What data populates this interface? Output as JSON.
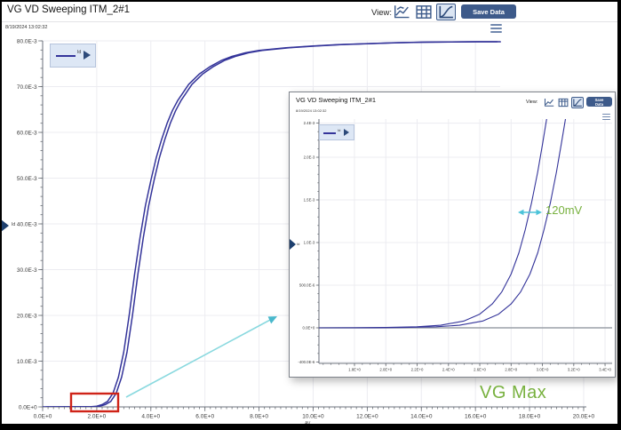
{
  "window": {
    "title": "VG VD Sweeping ITM_2#1",
    "timestamp": "8/19/2024 13:02:32"
  },
  "toolbar": {
    "view_label": "View:",
    "save_label": "Save Data",
    "icons": [
      "overlay-chart-view",
      "table-view",
      "graph-view-selected",
      "menu"
    ]
  },
  "legend": {
    "label": "Id"
  },
  "axes_labels": {
    "y": "Id",
    "x": "AV"
  },
  "annotations": {
    "delta_label": "120mV",
    "vg_max_label": "VG Max"
  },
  "colors": {
    "curve": "#34349a",
    "accent_blue": "#3d5a8a",
    "annotation_green": "#78b13f",
    "annotation_cyan": "#4cc3d9",
    "highlight_red": "#cf2318"
  },
  "chart_data": [
    {
      "id": "main",
      "type": "line",
      "title": "VG VD Sweeping ITM_2#1",
      "xlabel": "AV",
      "ylabel": "Id",
      "xlim": [
        0,
        20.1
      ],
      "ylim": [
        0,
        0.08
      ],
      "grid": true,
      "x_ticks": [
        {
          "v": 0,
          "label": "0.0E+0"
        },
        {
          "v": 2,
          "label": "2.0E+0"
        },
        {
          "v": 4,
          "label": "4.0E+0"
        },
        {
          "v": 6,
          "label": "6.0E+0"
        },
        {
          "v": 8,
          "label": "8.0E+0"
        },
        {
          "v": 10,
          "label": "10.0E+0"
        },
        {
          "v": 12,
          "label": "12.0E+0"
        },
        {
          "v": 14,
          "label": "14.0E+0"
        },
        {
          "v": 16,
          "label": "16.0E+0"
        },
        {
          "v": 18,
          "label": "18.0E+0"
        },
        {
          "v": 20,
          "label": "20.0E+0"
        }
      ],
      "y_ticks": [
        {
          "v": 0.08,
          "label": "80.0E-3"
        },
        {
          "v": 0.07,
          "label": "70.0E-3"
        },
        {
          "v": 0.06,
          "label": "60.0E-3"
        },
        {
          "v": 0.05,
          "label": "50.0E-3"
        },
        {
          "v": 0.04,
          "label": "40.0E-3"
        },
        {
          "v": 0.03,
          "label": "30.0E-3"
        },
        {
          "v": 0.02,
          "label": "20.0E-3"
        },
        {
          "v": 0.01,
          "label": "10.0E-3"
        },
        {
          "v": 0,
          "label": "0.0E+0"
        }
      ],
      "series": [
        {
          "name": "Id",
          "vg_offset_v": 0
        },
        {
          "name": "Id",
          "vg_offset_v": 0.12
        }
      ],
      "points": [
        [
          0,
          0
        ],
        [
          1.2,
          1e-05
        ],
        [
          1.8,
          6e-05
        ],
        [
          2.0,
          0.00015
        ],
        [
          2.2,
          0.0005
        ],
        [
          2.4,
          0.0012
        ],
        [
          2.6,
          0.003
        ],
        [
          2.8,
          0.0065
        ],
        [
          3.0,
          0.012
        ],
        [
          3.2,
          0.02
        ],
        [
          3.4,
          0.029
        ],
        [
          3.6,
          0.037
        ],
        [
          3.8,
          0.044
        ],
        [
          4.0,
          0.0495
        ],
        [
          4.2,
          0.0545
        ],
        [
          4.4,
          0.0585
        ],
        [
          4.6,
          0.062
        ],
        [
          4.8,
          0.0648
        ],
        [
          5.0,
          0.067
        ],
        [
          5.4,
          0.0705
        ],
        [
          5.8,
          0.0728
        ],
        [
          6.2,
          0.0744
        ],
        [
          6.6,
          0.0757
        ],
        [
          7.0,
          0.0766
        ],
        [
          7.5,
          0.0774
        ],
        [
          8.0,
          0.0779
        ],
        [
          9.0,
          0.0785
        ],
        [
          10.0,
          0.0789
        ],
        [
          11.0,
          0.0792
        ],
        [
          12.0,
          0.0794
        ],
        [
          13.0,
          0.0796
        ],
        [
          14.0,
          0.0797
        ],
        [
          15.0,
          0.07975
        ],
        [
          16.0,
          0.0798
        ],
        [
          16.8,
          0.0798
        ]
      ]
    },
    {
      "id": "inset",
      "type": "line",
      "title": "VG VD Sweeping ITM_2#1",
      "xlabel": "AV",
      "ylabel": "Id",
      "xlim": [
        1.573,
        3.445
      ],
      "ylim": [
        -0.0004167,
        0.002448
      ],
      "grid": true,
      "zero_line": true,
      "x_ticks": [
        {
          "v": 1.8,
          "label": "1.8E+0"
        },
        {
          "v": 2.0,
          "label": "2.0E+0"
        },
        {
          "v": 2.2,
          "label": "2.2E+0"
        },
        {
          "v": 2.4,
          "label": "2.4E+0"
        },
        {
          "v": 2.6,
          "label": "2.6E+0"
        },
        {
          "v": 2.8,
          "label": "2.8E+0"
        },
        {
          "v": 3.0,
          "label": "3.0E+0"
        },
        {
          "v": 3.2,
          "label": "3.2E+0"
        },
        {
          "v": 3.4,
          "label": "3.4E+0"
        }
      ],
      "y_ticks": [
        {
          "v": 0.0024,
          "label": "2.4E-3"
        },
        {
          "v": 0.002,
          "label": "2.0E-3"
        },
        {
          "v": 0.0015,
          "label": "1.5E-3"
        },
        {
          "v": 0.001,
          "label": "1.0E-3"
        },
        {
          "v": 0.0005,
          "label": "500.0E-6"
        },
        {
          "v": 0,
          "label": "0.0E+0"
        },
        {
          "v": -0.0004,
          "label": "-400.0E-6"
        }
      ],
      "series": [
        {
          "name": "Id",
          "vg_offset_v": 0
        },
        {
          "name": "Id",
          "vg_offset_v": 0.12
        }
      ],
      "points": [
        [
          1.573,
          0
        ],
        [
          1.8,
          1e-06
        ],
        [
          2.0,
          4e-06
        ],
        [
          2.2,
          1.3e-05
        ],
        [
          2.35,
          3e-05
        ],
        [
          2.5,
          8e-05
        ],
        [
          2.6,
          0.00016
        ],
        [
          2.68,
          0.00028
        ],
        [
          2.74,
          0.00042
        ],
        [
          2.8,
          0.00063
        ],
        [
          2.85,
          0.00088
        ],
        [
          2.89,
          0.00115
        ],
        [
          2.93,
          0.00146
        ],
        [
          2.97,
          0.00183
        ],
        [
          3.0,
          0.00215
        ],
        [
          3.03,
          0.00248
        ]
      ]
    }
  ]
}
